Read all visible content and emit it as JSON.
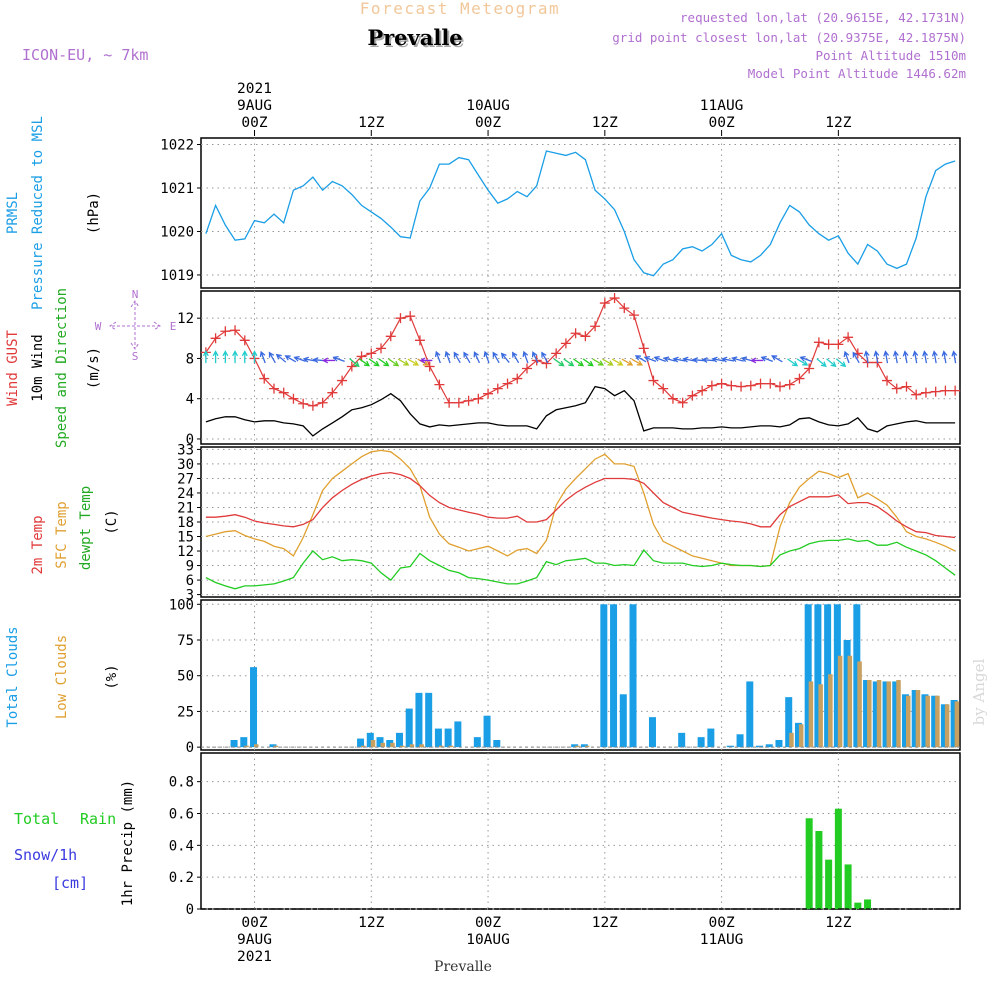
{
  "header": {
    "title": "Forecast Meteogram",
    "location": "Prevalle",
    "model": "ICON-EU, ~ 7km",
    "requested": "requested lon,lat (20.9615E, 42.1731N)",
    "grid_point": "grid point closest lon,lat (20.9375E, 42.1875N)",
    "point_alt": "Point Altitude 1510m",
    "model_alt": "Model Point Altitude 1446.62m",
    "footer": "Prevalle",
    "watermark": "by Angel",
    "compass": [
      "N",
      "W",
      "E",
      "S"
    ]
  },
  "colors": {
    "pressure": "#1a9ee6",
    "gust": "#e03a3a",
    "wind": "#000000",
    "t2m": "#e03a3a",
    "sfc": "#e0a030",
    "dew": "#22cc22",
    "total_cloud": "#1a9ee6",
    "low_cloud": "#c8a060",
    "rain": "#22cc22",
    "snow": "#3a3ae0",
    "purple": "#b070d0"
  },
  "time_axis": {
    "top_labels": [
      {
        "h": 0,
        "lines": [
          "2021",
          "9AUG",
          "00Z"
        ]
      },
      {
        "h": 12,
        "lines": [
          "12Z"
        ]
      },
      {
        "h": 24,
        "lines": [
          "10AUG",
          "00Z"
        ]
      },
      {
        "h": 36,
        "lines": [
          "12Z"
        ]
      },
      {
        "h": 48,
        "lines": [
          "11AUG",
          "00Z"
        ]
      },
      {
        "h": 60,
        "lines": [
          "12Z"
        ]
      }
    ],
    "bottom_labels": [
      {
        "h": 0,
        "lines": [
          "00Z",
          "9AUG",
          "2021"
        ]
      },
      {
        "h": 12,
        "lines": [
          "12Z"
        ]
      },
      {
        "h": 24,
        "lines": [
          "00Z",
          "10AUG"
        ]
      },
      {
        "h": 36,
        "lines": [
          "12Z"
        ]
      },
      {
        "h": 48,
        "lines": [
          "00Z",
          "11AUG"
        ]
      },
      {
        "h": 60,
        "lines": [
          "12Z"
        ]
      }
    ]
  },
  "panels": {
    "pressure": {
      "labels": [
        "PRMSL",
        "Pressure Reduced to MSL",
        "(hPa)"
      ],
      "ticks": [
        1019,
        1020,
        1021,
        1022
      ]
    },
    "wind": {
      "labels": [
        "Wind GUST",
        "10m Wind",
        "Speed and Direction",
        "(m/s)"
      ],
      "ticks": [
        0,
        4,
        8,
        12
      ]
    },
    "temp": {
      "labels": [
        "2m Temp",
        "SFC Temp",
        "dewpt Temp",
        "(C)"
      ],
      "ticks": [
        3,
        6,
        9,
        12,
        15,
        18,
        21,
        24,
        27,
        30,
        33
      ]
    },
    "cloud": {
      "labels": [
        "Total Clouds",
        "Low Clouds",
        "(%)"
      ],
      "ticks": [
        0,
        25,
        50,
        75,
        100
      ]
    },
    "precip": {
      "labels": [
        "Total",
        "Rain",
        "Snow/1h",
        "[cm]",
        "1hr Precip (mm)"
      ],
      "ticks": [
        "0",
        "0.2",
        "0.4",
        "0.6",
        "0.8"
      ]
    }
  },
  "chart_data": [
    {
      "type": "line",
      "title": "PRMSL Pressure Reduced to MSL",
      "ylabel": "hPa",
      "ylim": [
        1018.7,
        1022.15
      ],
      "x_hours": [
        -5,
        -4,
        -3,
        -2,
        -1,
        0,
        1,
        2,
        3,
        4,
        5,
        6,
        7,
        8,
        9,
        10,
        11,
        12,
        13,
        14,
        15,
        16,
        17,
        18,
        19,
        20,
        21,
        22,
        23,
        24,
        25,
        26,
        27,
        28,
        29,
        30,
        31,
        32,
        33,
        34,
        35,
        36,
        37,
        38,
        39,
        40,
        41,
        42,
        43,
        44,
        45,
        46,
        47,
        48,
        49,
        50,
        51,
        52,
        53,
        54,
        55,
        56,
        57,
        58,
        59,
        60,
        61,
        62,
        63,
        64,
        65,
        66,
        67,
        68,
        69,
        70,
        71,
        72
      ],
      "series": [
        {
          "name": "PRMSL",
          "values": [
            1019.95,
            1020.6,
            1020.15,
            1019.8,
            1019.83,
            1020.25,
            1020.2,
            1020.4,
            1020.2,
            1020.95,
            1021.05,
            1021.25,
            1020.95,
            1021.15,
            1021.05,
            1020.85,
            1020.6,
            1020.45,
            1020.3,
            1020.1,
            1019.88,
            1019.85,
            1020.7,
            1021.0,
            1021.55,
            1021.55,
            1021.7,
            1021.65,
            1021.3,
            1020.95,
            1020.65,
            1020.75,
            1020.92,
            1020.8,
            1021.05,
            1021.85,
            1021.8,
            1021.75,
            1021.82,
            1021.65,
            1020.95,
            1020.75,
            1020.5,
            1020.0,
            1019.35,
            1019.05,
            1018.98,
            1019.25,
            1019.35,
            1019.6,
            1019.65,
            1019.55,
            1019.7,
            1019.95,
            1019.45,
            1019.35,
            1019.3,
            1019.45,
            1019.7,
            1020.2,
            1020.6,
            1020.45,
            1020.15,
            1019.95,
            1019.8,
            1019.9,
            1019.5,
            1019.25,
            1019.7,
            1019.55,
            1019.25,
            1019.15,
            1019.25,
            1019.85,
            1020.8,
            1021.4,
            1021.55,
            1021.62
          ]
        }
      ]
    },
    {
      "type": "line",
      "title": "Wind GUST / 10m Wind Speed and Direction",
      "ylabel": "m/s",
      "ylim": [
        -0.5,
        14.7
      ],
      "x_hours": [
        -5,
        -4,
        -3,
        -2,
        -1,
        0,
        1,
        2,
        3,
        4,
        5,
        6,
        7,
        8,
        9,
        10,
        11,
        12,
        13,
        14,
        15,
        16,
        17,
        18,
        19,
        20,
        21,
        22,
        23,
        24,
        25,
        26,
        27,
        28,
        29,
        30,
        31,
        32,
        33,
        34,
        35,
        36,
        37,
        38,
        39,
        40,
        41,
        42,
        43,
        44,
        45,
        46,
        47,
        48,
        49,
        50,
        51,
        52,
        53,
        54,
        55,
        56,
        57,
        58,
        59,
        60,
        61,
        62,
        63,
        64,
        65,
        66,
        67,
        68,
        69,
        70,
        71,
        72
      ],
      "series": [
        {
          "name": "Wind GUST",
          "values": [
            8.6,
            10.0,
            10.7,
            10.8,
            9.8,
            8.0,
            6.0,
            5.0,
            4.6,
            4.0,
            3.5,
            3.3,
            3.6,
            4.6,
            5.8,
            7.2,
            8.2,
            8.5,
            9.0,
            10.2,
            12.0,
            12.2,
            9.8,
            7.2,
            5.4,
            3.6,
            3.6,
            3.8,
            4.0,
            4.5,
            5.0,
            5.5,
            6.0,
            7.0,
            7.8,
            7.5,
            8.5,
            9.5,
            10.5,
            10.2,
            11.2,
            13.5,
            14.0,
            13.0,
            12.3,
            9.0,
            5.8,
            5.0,
            4.0,
            3.6,
            4.3,
            4.8,
            5.3,
            5.5,
            5.3,
            5.2,
            5.3,
            5.5,
            5.5,
            5.2,
            5.4,
            6.0,
            7.0,
            9.6,
            9.4,
            9.4,
            10.1,
            8.5,
            7.6,
            7.6,
            5.8,
            5.0,
            5.2,
            4.4,
            4.6,
            4.7,
            4.8,
            4.8
          ]
        },
        {
          "name": "10m Wind",
          "values": [
            1.7,
            2.0,
            2.2,
            2.2,
            1.9,
            1.7,
            1.8,
            1.8,
            1.6,
            1.5,
            1.3,
            0.3,
            1.0,
            1.6,
            2.2,
            2.9,
            3.1,
            3.4,
            3.9,
            4.5,
            3.8,
            2.5,
            1.5,
            1.2,
            1.4,
            1.3,
            1.4,
            1.5,
            1.6,
            1.6,
            1.4,
            1.3,
            1.3,
            1.3,
            1.0,
            2.3,
            2.9,
            3.1,
            3.3,
            3.6,
            5.2,
            5.0,
            4.3,
            4.8,
            3.8,
            0.8,
            1.1,
            1.1,
            1.1,
            1.0,
            1.0,
            1.1,
            1.1,
            1.2,
            1.1,
            1.1,
            1.2,
            1.3,
            1.3,
            1.2,
            1.4,
            2.0,
            2.1,
            1.7,
            1.4,
            1.3,
            1.5,
            2.1,
            1.0,
            0.7,
            1.3,
            1.5,
            1.7,
            1.8,
            1.6,
            1.6,
            1.6,
            1.6
          ]
        }
      ]
    },
    {
      "type": "line",
      "title": "2m Temp / SFC Temp / dewpt Temp",
      "ylabel": "C",
      "ylim": [
        2.5,
        33.5
      ],
      "x_hours": [
        -5,
        -4,
        -3,
        -2,
        -1,
        0,
        1,
        2,
        3,
        4,
        5,
        6,
        7,
        8,
        9,
        10,
        11,
        12,
        13,
        14,
        15,
        16,
        17,
        18,
        19,
        20,
        21,
        22,
        23,
        24,
        25,
        26,
        27,
        28,
        29,
        30,
        31,
        32,
        33,
        34,
        35,
        36,
        37,
        38,
        39,
        40,
        41,
        42,
        43,
        44,
        45,
        46,
        47,
        48,
        49,
        50,
        51,
        52,
        53,
        54,
        55,
        56,
        57,
        58,
        59,
        60,
        61,
        62,
        63,
        64,
        65,
        66,
        67,
        68,
        69,
        70,
        71,
        72
      ],
      "series": [
        {
          "name": "2m Temp",
          "values": [
            19.0,
            19.0,
            19.2,
            19.5,
            19.0,
            18.2,
            17.8,
            17.5,
            17.2,
            17.0,
            17.5,
            18.5,
            21.0,
            23.0,
            24.5,
            25.8,
            26.8,
            27.5,
            28.0,
            28.2,
            27.8,
            27.0,
            25.5,
            23.5,
            22.0,
            21.0,
            20.5,
            20.0,
            19.6,
            19.0,
            18.8,
            18.8,
            19.2,
            18.0,
            18.0,
            18.5,
            20.5,
            22.5,
            24.0,
            25.2,
            26.2,
            27.0,
            27.0,
            27.0,
            26.8,
            26.0,
            24.0,
            22.0,
            21.0,
            20.0,
            19.6,
            19.2,
            18.8,
            18.5,
            18.2,
            18.0,
            17.6,
            17.0,
            17.0,
            19.5,
            21.2,
            22.2,
            23.2,
            23.2,
            23.2,
            23.6,
            21.8,
            22.0,
            22.0,
            21.2,
            19.8,
            18.2,
            17.0,
            16.0,
            15.8,
            15.2,
            15.0,
            14.8
          ]
        },
        {
          "name": "SFC Temp",
          "values": [
            15.0,
            15.5,
            16.0,
            16.2,
            15.2,
            14.5,
            14.0,
            13.0,
            12.5,
            11.0,
            14.8,
            19.5,
            24.5,
            27.0,
            28.5,
            30.0,
            31.5,
            32.5,
            32.8,
            32.5,
            31.0,
            29.0,
            25.5,
            19.0,
            15.5,
            13.5,
            12.8,
            12.0,
            12.5,
            13.0,
            12.0,
            11.0,
            12.2,
            12.5,
            11.5,
            14.2,
            21.5,
            24.8,
            27.0,
            29.0,
            31.0,
            32.0,
            30.0,
            30.0,
            29.5,
            24.0,
            17.5,
            14.0,
            13.0,
            12.0,
            11.0,
            10.5,
            10.0,
            9.5,
            9.0,
            9.0,
            9.0,
            8.8,
            9.0,
            17.0,
            22.0,
            25.2,
            27.0,
            28.5,
            28.0,
            27.2,
            28.0,
            23.0,
            24.0,
            22.8,
            21.5,
            19.0,
            16.0,
            15.0,
            14.5,
            13.8,
            13.0,
            12.0
          ]
        },
        {
          "name": "dewpt Temp",
          "values": [
            6.5,
            5.5,
            4.8,
            4.2,
            4.8,
            4.8,
            5.0,
            5.2,
            5.8,
            6.5,
            9.5,
            12.0,
            10.2,
            10.8,
            10.0,
            10.2,
            10.0,
            9.5,
            7.5,
            6.0,
            8.5,
            8.8,
            11.5,
            10.0,
            9.0,
            8.0,
            7.5,
            6.5,
            6.3,
            6.0,
            5.6,
            5.2,
            5.2,
            5.8,
            6.5,
            9.8,
            9.2,
            10.0,
            10.2,
            10.5,
            9.5,
            9.5,
            9.0,
            9.2,
            9.0,
            12.2,
            10.0,
            9.5,
            9.5,
            9.5,
            9.0,
            8.8,
            9.0,
            9.5,
            9.2,
            9.0,
            9.0,
            8.8,
            9.0,
            11.2,
            12.0,
            12.5,
            13.5,
            14.0,
            14.2,
            14.2,
            14.5,
            14.0,
            14.2,
            13.2,
            13.2,
            13.8,
            12.8,
            12.0,
            11.2,
            10.0,
            8.5,
            7.0
          ]
        }
      ]
    },
    {
      "type": "bar",
      "title": "Total Clouds / Low Clouds",
      "ylabel": "%",
      "ylim": [
        -2,
        103
      ],
      "x_hours": [
        -5,
        -4,
        -3,
        -2,
        -1,
        0,
        1,
        2,
        3,
        4,
        5,
        6,
        7,
        8,
        9,
        10,
        11,
        12,
        13,
        14,
        15,
        16,
        17,
        18,
        19,
        20,
        21,
        22,
        23,
        24,
        25,
        26,
        27,
        28,
        29,
        30,
        31,
        32,
        33,
        34,
        35,
        36,
        37,
        38,
        39,
        40,
        41,
        42,
        43,
        44,
        45,
        46,
        47,
        48,
        49,
        50,
        51,
        52,
        53,
        54,
        55,
        56,
        57,
        58,
        59,
        60,
        61,
        62,
        63,
        64,
        65,
        66,
        67,
        68,
        69,
        70,
        71,
        72
      ],
      "series": [
        {
          "name": "Total Clouds",
          "values": [
            0,
            0,
            0,
            5,
            7,
            56,
            0,
            2,
            0,
            0,
            0,
            0,
            0,
            0,
            0,
            0,
            6,
            10,
            7,
            5,
            10,
            27,
            38,
            38,
            13,
            13,
            18,
            0,
            7,
            22,
            5,
            0,
            0,
            0,
            0,
            0,
            0,
            0,
            2,
            2,
            0,
            100,
            100,
            37,
            100,
            0,
            21,
            0,
            0,
            10,
            0,
            7,
            13,
            0,
            1,
            9,
            46,
            1,
            2,
            5,
            35,
            17,
            100,
            100,
            100,
            100,
            75,
            100,
            47,
            46,
            46,
            46,
            37,
            40,
            37,
            36,
            30,
            33
          ]
        },
        {
          "name": "Low Clouds",
          "values": [
            0,
            0,
            0,
            0,
            1,
            2,
            0,
            1,
            0,
            0,
            0,
            0,
            0,
            0,
            0,
            0,
            1,
            5,
            3,
            3,
            1,
            2,
            2,
            0,
            1,
            1,
            0,
            0,
            0,
            0,
            0,
            0,
            0,
            0,
            0,
            0,
            0,
            0,
            1,
            1,
            0,
            0,
            0,
            0,
            0,
            0,
            0,
            0,
            0,
            0,
            0,
            0,
            0,
            0,
            0,
            0,
            0,
            0,
            0,
            0,
            10,
            16,
            46,
            44,
            51,
            64,
            64,
            60,
            47,
            47,
            46,
            47,
            36,
            40,
            36,
            36,
            30,
            32
          ]
        }
      ]
    },
    {
      "type": "bar",
      "title": "1hr Precip",
      "ylabel": "mm",
      "ylim": [
        0,
        0.98
      ],
      "x_hours": [
        57,
        58,
        59,
        60,
        61,
        62,
        63
      ],
      "series": [
        {
          "name": "Total Rain",
          "values": [
            0.57,
            0.49,
            0.31,
            0.63,
            0.28,
            0.04,
            0.06
          ]
        },
        {
          "name": "Snow/1h",
          "values": [
            0,
            0,
            0,
            0,
            0,
            0,
            0
          ]
        }
      ]
    }
  ]
}
